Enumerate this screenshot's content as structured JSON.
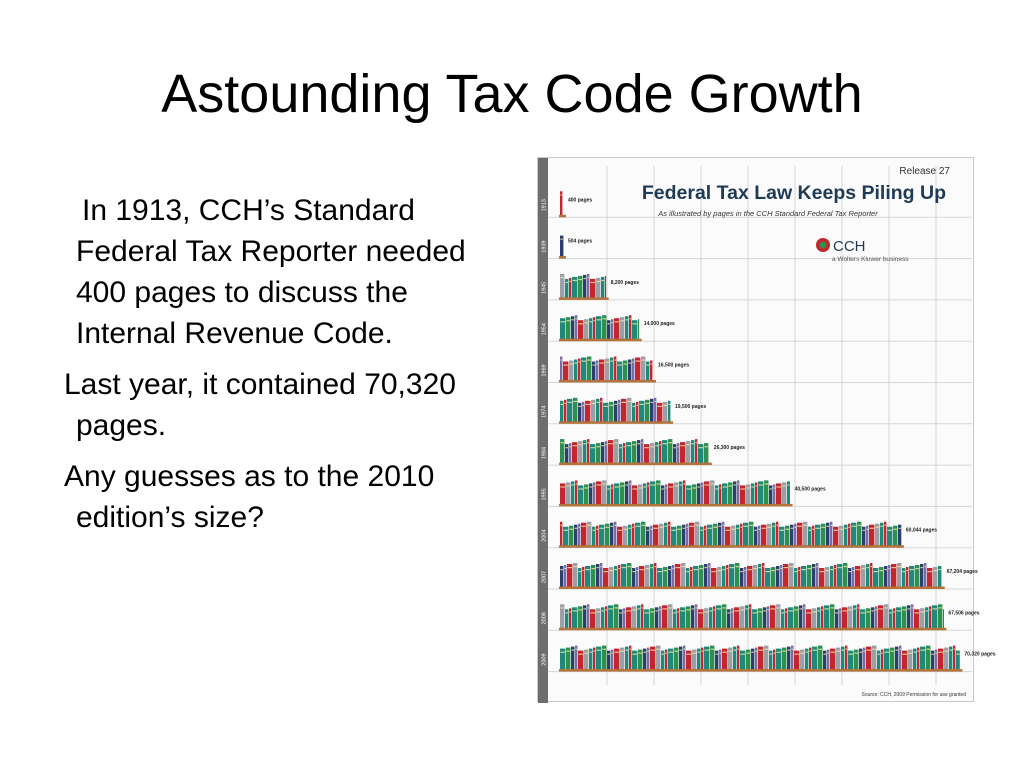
{
  "slide": {
    "title": "Astounding Tax Code Growth",
    "bullets": [
      "In 1913, CCH’s Standard Federal Tax Reporter needed 400 pages to discuss the Internal Revenue Code.",
      "Last year, it contained 70,320 pages.",
      "Any guesses as to the 2010 edition’s size?"
    ]
  },
  "chart_data": {
    "type": "bar",
    "title": "Federal Tax Law Keeps Piling Up",
    "subtitle": "As illustrated by pages in the CCH Standard Federal Tax Reporter",
    "release": "Release 27",
    "brand": "CCH",
    "brand_tagline": "a Wolters Kluwer business",
    "source": "Source: CCH, 2009 Permission for use granted",
    "categories": [
      "1913",
      "1939",
      "1945",
      "1954",
      "1969",
      "1974",
      "1984",
      "1995",
      "2004",
      "2007",
      "2008",
      "2009"
    ],
    "values": [
      400,
      504,
      8200,
      14000,
      16500,
      19500,
      26300,
      40500,
      60044,
      67204,
      67506,
      70320
    ],
    "value_labels": [
      "400 pages",
      "504 pages",
      "8,200 pages",
      "14,000 pages",
      "16,500 pages",
      "19,500 pages",
      "26,300 pages",
      "40,500 pages",
      "60,044 pages",
      "67,204 pages",
      "67,506 pages",
      "70,320 pages"
    ],
    "xlim": [
      0,
      72000
    ],
    "grid": true,
    "colors": {
      "red": "#c4262e",
      "teal": "#1f8a7a",
      "green": "#2f8f4e",
      "navy": "#2a3f6e",
      "purple": "#7b6aa6",
      "grey": "#9aa0a6",
      "title": "#1f3a56",
      "grid": "#d6d6d6"
    }
  }
}
